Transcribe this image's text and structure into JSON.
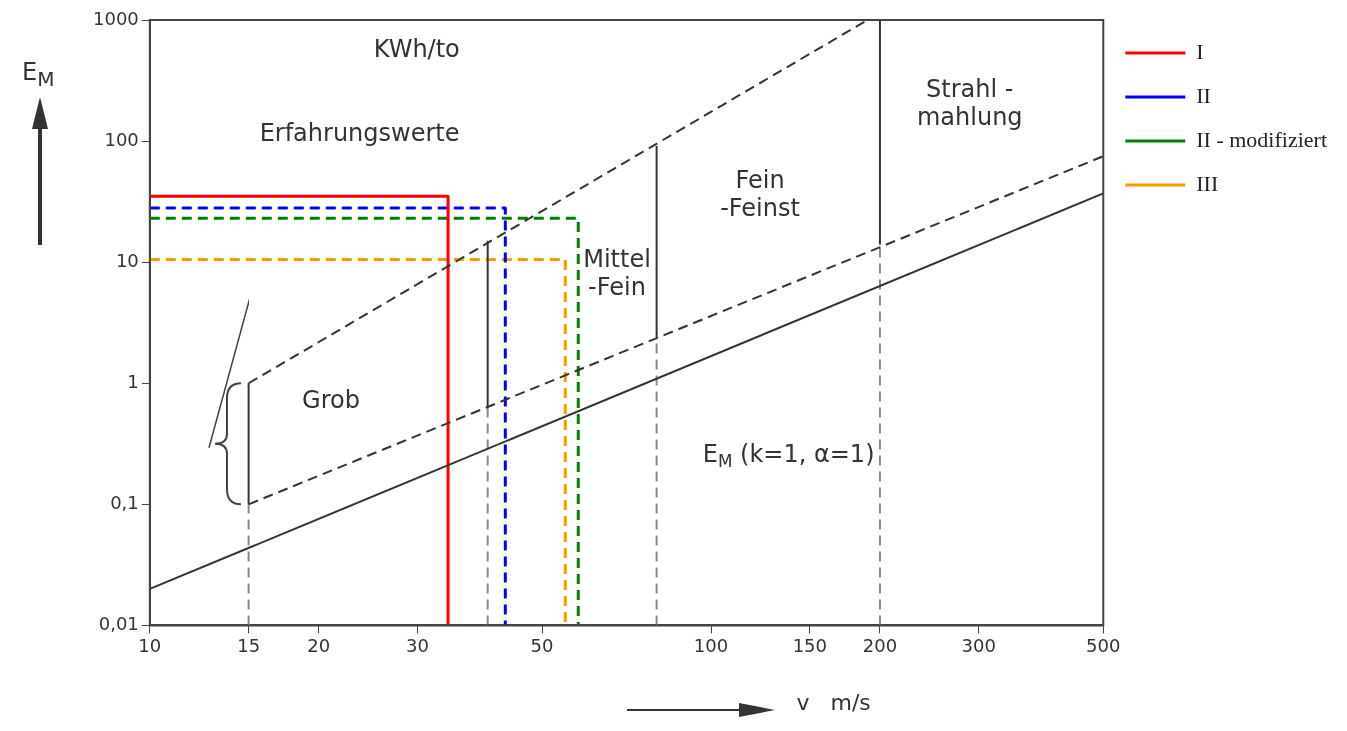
{
  "chart_data": {
    "type": "line",
    "xlabel": "v   m/s",
    "ylabel": "E$_{M}$",
    "log": "xy",
    "grid": false,
    "legend": "right",
    "marker": "none",
    "xlim": [
      10,
      500
    ],
    "xticks": [
      10,
      15,
      20,
      30,
      50,
      100,
      150,
      200,
      300,
      500
    ],
    "ylim": [
      0.01,
      1000
    ],
    "yticks": [
      {
        "value": 0.01,
        "label": "0,01"
      },
      {
        "value": 0.1,
        "label": "0,1"
      },
      1,
      10,
      100,
      1000
    ],
    "series": [
      {
        "color": "#333333",
        "line_style": "solid",
        "x": [
          10,
          500
        ],
        "values": [
          0.02,
          37
        ]
      },
      {
        "color": "#333333",
        "line_style": "dashed",
        "x": [
          15,
          190
        ],
        "values": [
          1,
          1000
        ]
      },
      {
        "color": "#333333",
        "line_style": "dashed",
        "x": [
          15,
          500
        ],
        "values": [
          0.1,
          75
        ]
      },
      {
        "color": "#888888",
        "line_style": "dashed",
        "x": [
          15,
          15
        ],
        "values": [
          0.01,
          0.1
        ]
      },
      {
        "color": "#333333",
        "line_style": "solid",
        "x": [
          15,
          15
        ],
        "values": [
          0.1,
          1
        ]
      },
      {
        "color": "#888888",
        "line_style": "dashed",
        "x": [
          40,
          40
        ],
        "values": [
          0.01,
          0.64
        ]
      },
      {
        "color": "#333333",
        "line_style": "solid",
        "x": [
          40,
          40
        ],
        "values": [
          0.64,
          15
        ]
      },
      {
        "color": "#888888",
        "line_style": "dashed",
        "x": [
          80,
          80
        ],
        "values": [
          0.01,
          2.4
        ]
      },
      {
        "color": "#333333",
        "line_style": "solid",
        "x": [
          80,
          80
        ],
        "values": [
          2.4,
          91
        ]
      },
      {
        "color": "#888888",
        "line_style": "dashed",
        "x": [
          200,
          200
        ],
        "values": [
          0.01,
          14
        ]
      },
      {
        "color": "#333333",
        "line_style": "solid",
        "x": [
          200,
          200
        ],
        "values": [
          14,
          1000
        ]
      },
      {
        "name": "I",
        "color": "#ff0000",
        "line_style": "solid",
        "x": [
          10,
          34,
          34
        ],
        "values": [
          35,
          35,
          0.01
        ]
      },
      {
        "name": "II",
        "color": "#0000ff",
        "line_style": "dashed",
        "x": [
          10,
          43,
          43
        ],
        "values": [
          28,
          28,
          0.01
        ]
      },
      {
        "name": "II - modifiziert",
        "color": "#008000",
        "line_style": "dashed",
        "x": [
          10,
          58,
          58
        ],
        "values": [
          23,
          23,
          0.01
        ]
      },
      {
        "name": "III",
        "color": "#ff9900",
        "line_style": "dashed",
        "x": [
          10,
          55,
          55
        ],
        "values": [
          10.5,
          10.5,
          0.01
        ]
      }
    ],
    "annotations": [
      "KWh/to",
      "Erfahrungswerte",
      "Grob",
      "Mittel\n-Fein",
      "Fein\n-Feinst",
      "Strahl -\nmahlung",
      "E$_{M}$ (k=1, α=1)"
    ]
  }
}
